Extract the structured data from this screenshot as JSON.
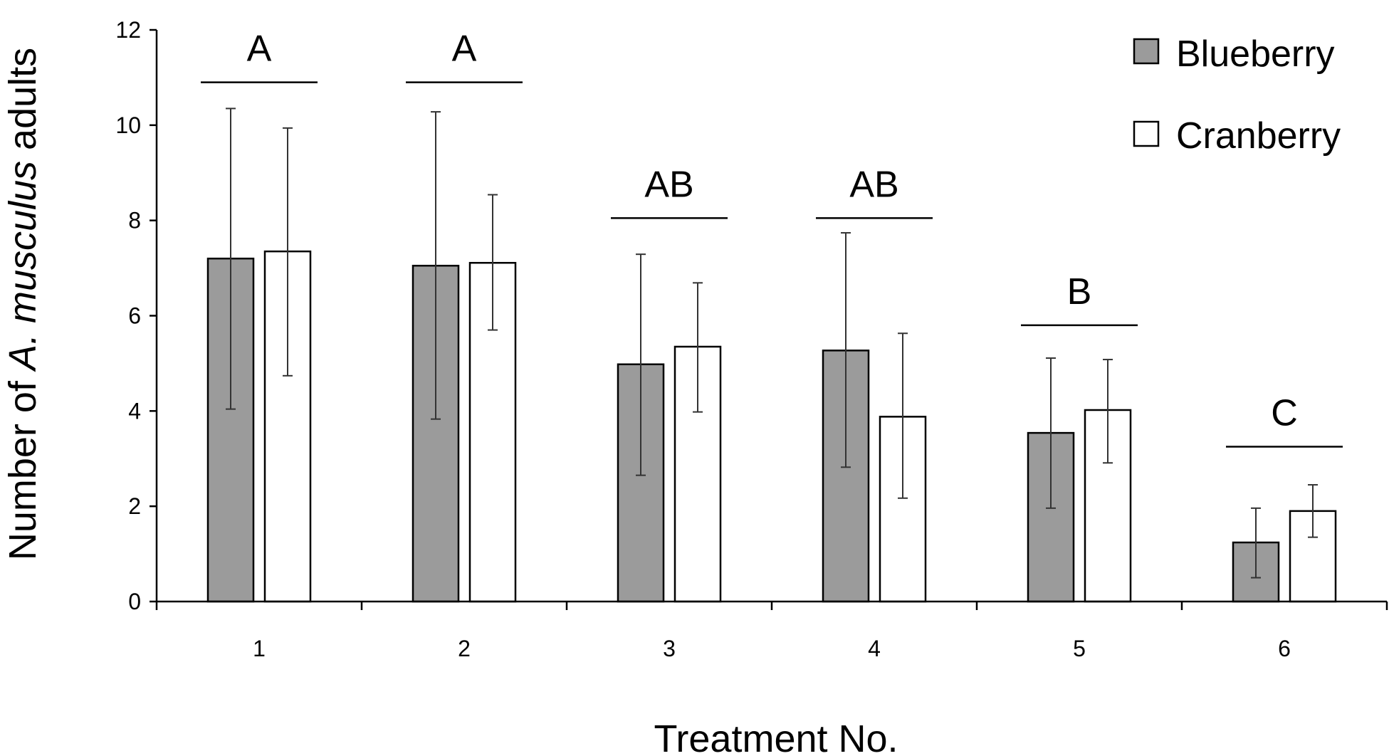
{
  "chart_data": {
    "type": "bar",
    "categories": [
      "1",
      "2",
      "3",
      "4",
      "5",
      "6"
    ],
    "xlabel": "Treatment No.",
    "ylabel_prefix": "Number of ",
    "ylabel_italic": "A. musculus",
    "ylabel_suffix": " adults",
    "ylim": [
      0,
      12
    ],
    "yticks": [
      0,
      2,
      4,
      6,
      8,
      10,
      12
    ],
    "legend_position": "top-right",
    "grid": false,
    "series": [
      {
        "name": "Blueberry",
        "color": "#9b9b9b",
        "values": [
          7.2,
          7.05,
          4.98,
          5.27,
          3.54,
          1.24
        ],
        "error_low": [
          4.04,
          3.83,
          2.65,
          2.82,
          1.96,
          0.5
        ],
        "error_high": [
          10.35,
          10.28,
          7.29,
          7.74,
          5.11,
          1.96
        ]
      },
      {
        "name": "Cranberry",
        "color": "#ffffff",
        "values": [
          7.35,
          7.11,
          5.35,
          3.88,
          4.02,
          1.9
        ],
        "error_low": [
          4.74,
          5.7,
          3.98,
          2.17,
          2.91,
          1.35
        ],
        "error_high": [
          9.94,
          8.54,
          6.69,
          5.63,
          5.08,
          2.45
        ]
      }
    ],
    "significance": [
      {
        "category": "1",
        "label": "A",
        "level": 10.9
      },
      {
        "category": "2",
        "label": "A",
        "level": 10.9
      },
      {
        "category": "3",
        "label": "AB",
        "level": 8.05
      },
      {
        "category": "4",
        "label": "AB",
        "level": 8.05
      },
      {
        "category": "5",
        "label": "B",
        "level": 5.8
      },
      {
        "category": "6",
        "label": "C",
        "level": 3.25
      }
    ]
  }
}
